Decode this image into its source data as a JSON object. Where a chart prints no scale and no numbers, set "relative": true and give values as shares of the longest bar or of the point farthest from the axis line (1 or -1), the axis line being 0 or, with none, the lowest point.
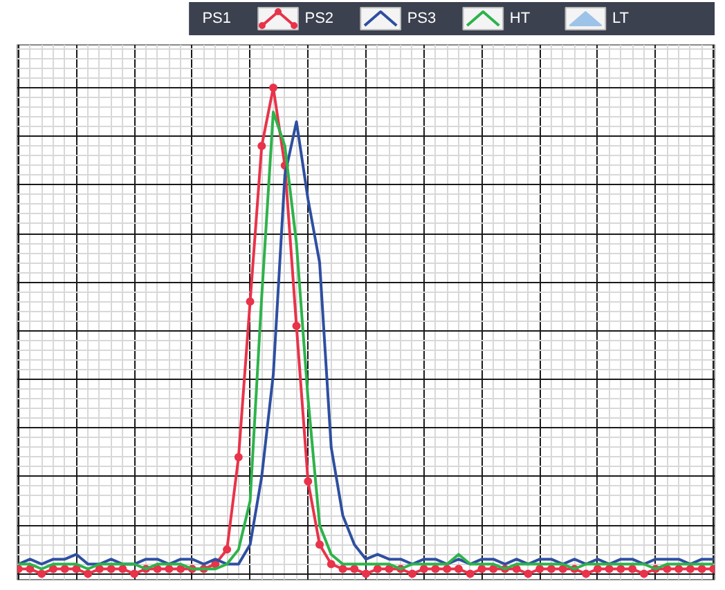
{
  "chart_data": {
    "type": "line",
    "relative": true,
    "grid": true,
    "legend": "top right",
    "line_style": "solid",
    "categories": [
      null,
      null,
      null,
      null,
      null,
      null,
      null,
      null,
      null,
      null,
      null,
      null,
      null,
      null,
      null,
      null,
      null,
      null,
      null,
      null,
      null,
      null,
      null,
      null,
      null,
      null,
      null,
      null,
      null,
      null,
      null,
      null,
      null,
      null,
      null,
      null,
      null,
      null,
      null,
      null,
      null,
      null,
      null,
      null,
      null,
      null,
      null,
      null,
      null,
      null,
      null,
      null,
      null,
      null,
      null,
      null,
      null,
      null,
      null,
      null,
      null
    ],
    "series": [
      {
        "name": "PS1",
        "values": [
          null,
          null,
          null,
          null,
          null,
          null,
          null,
          null,
          null,
          null,
          null,
          null,
          null,
          null,
          null,
          null,
          null,
          null,
          null,
          null,
          null,
          null,
          null,
          null,
          null,
          null,
          null,
          null,
          null,
          null,
          null,
          null,
          null,
          null,
          null,
          null,
          null,
          null,
          null,
          null,
          null,
          null,
          null,
          null,
          null,
          null,
          null,
          null,
          null,
          null,
          null,
          null,
          null,
          null,
          null,
          null,
          null,
          null,
          null,
          null,
          null
        ]
      },
      {
        "name": "PS2",
        "color": "#e8334a",
        "marker": "circle",
        "values": [
          0.01,
          0.01,
          0.0,
          0.01,
          0.01,
          0.01,
          0.0,
          0.01,
          0.01,
          0.01,
          0.0,
          0.01,
          0.01,
          0.01,
          0.01,
          0.01,
          0.01,
          0.02,
          0.05,
          0.24,
          0.56,
          0.88,
          1,
          0.84,
          0.51,
          0.19,
          0.06,
          0.02,
          0.01,
          0.01,
          0.0,
          0.01,
          0.01,
          0.01,
          0.0,
          0.01,
          0.01,
          0.01,
          0.01,
          0.0,
          0.01,
          0.01,
          0.01,
          0.01,
          0.0,
          0.01,
          0.01,
          0.01,
          0.01,
          0.0,
          0.01,
          0.01,
          0.01,
          0.01,
          0.0,
          0.01,
          0.01,
          0.01,
          0.01,
          0.01,
          0.01
        ]
      },
      {
        "name": "PS3",
        "color": "#2e4fa0",
        "marker": "none",
        "values": [
          0.02,
          0.03,
          0.02,
          0.03,
          0.03,
          0.04,
          0.02,
          0.02,
          0.03,
          0.02,
          0.02,
          0.03,
          0.03,
          0.02,
          0.03,
          0.03,
          0.02,
          0.03,
          0.02,
          0.02,
          0.06,
          0.2,
          0.41,
          0.82,
          0.93,
          0.77,
          0.64,
          0.26,
          0.12,
          0.06,
          0.03,
          0.04,
          0.03,
          0.03,
          0.02,
          0.03,
          0.03,
          0.02,
          0.03,
          0.02,
          0.03,
          0.03,
          0.02,
          0.03,
          0.02,
          0.03,
          0.03,
          0.02,
          0.03,
          0.02,
          0.03,
          0.02,
          0.03,
          0.03,
          0.02,
          0.03,
          0.03,
          0.03,
          0.02,
          0.03,
          0.03
        ]
      },
      {
        "name": "HT",
        "color": "#2db34a",
        "marker": "none",
        "values": [
          0.02,
          0.02,
          0.01,
          0.02,
          0.02,
          0.02,
          0.01,
          0.02,
          0.02,
          0.02,
          0.02,
          0.01,
          0.02,
          0.02,
          0.02,
          0.01,
          0.01,
          0.01,
          0.02,
          0.05,
          0.15,
          0.57,
          0.95,
          0.88,
          0.68,
          0.36,
          0.1,
          0.04,
          0.02,
          0.02,
          0.02,
          0.02,
          0.02,
          0.01,
          0.02,
          0.02,
          0.02,
          0.02,
          0.04,
          0.02,
          0.02,
          0.02,
          0.01,
          0.02,
          0.02,
          0.02,
          0.02,
          0.02,
          0.01,
          0.02,
          0.02,
          0.02,
          0.02,
          0.02,
          0.02,
          0.01,
          0.02,
          0.02,
          0.02,
          0.02,
          0.02
        ]
      },
      {
        "name": "LT",
        "type": "area",
        "color": "#9ec3e8",
        "values": [
          null,
          null,
          null,
          null,
          null,
          null,
          null,
          null,
          null,
          null,
          null,
          null,
          null,
          null,
          null,
          null,
          null,
          null,
          null,
          null,
          null,
          null,
          null,
          null,
          null,
          null,
          null,
          null,
          null,
          null,
          null,
          null,
          null,
          null,
          null,
          null,
          null,
          null,
          null,
          null,
          null,
          null,
          null,
          null,
          null,
          null,
          null,
          null,
          null,
          null,
          null,
          null,
          null,
          null,
          null,
          null,
          null,
          null,
          null,
          null,
          null
        ]
      }
    ]
  }
}
